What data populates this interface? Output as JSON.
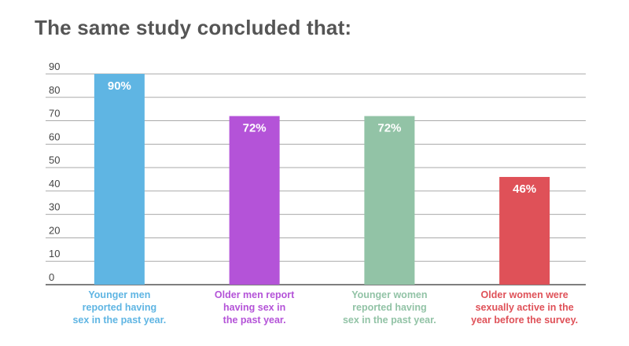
{
  "title": "The same study concluded that:",
  "chart_data": {
    "type": "bar",
    "categories": [
      "Younger men\nreported having\nsex in the past year.",
      "Older men report\nhaving sex in\nthe past year.",
      "Younger women\nreported having\nsex in the past year.",
      "Older women were\nsexually active in the\nyear before the survey."
    ],
    "values": [
      90,
      72,
      72,
      46
    ],
    "value_labels": [
      "90%",
      "72%",
      "72%",
      "46%"
    ],
    "colors": [
      "#5fb5e3",
      "#b453d8",
      "#92c3a6",
      "#df5158"
    ],
    "ylim": [
      0,
      90
    ],
    "yticks": [
      0,
      10,
      20,
      30,
      40,
      50,
      60,
      70,
      80,
      90
    ],
    "grid": true,
    "xlabel": "",
    "ylabel": ""
  }
}
